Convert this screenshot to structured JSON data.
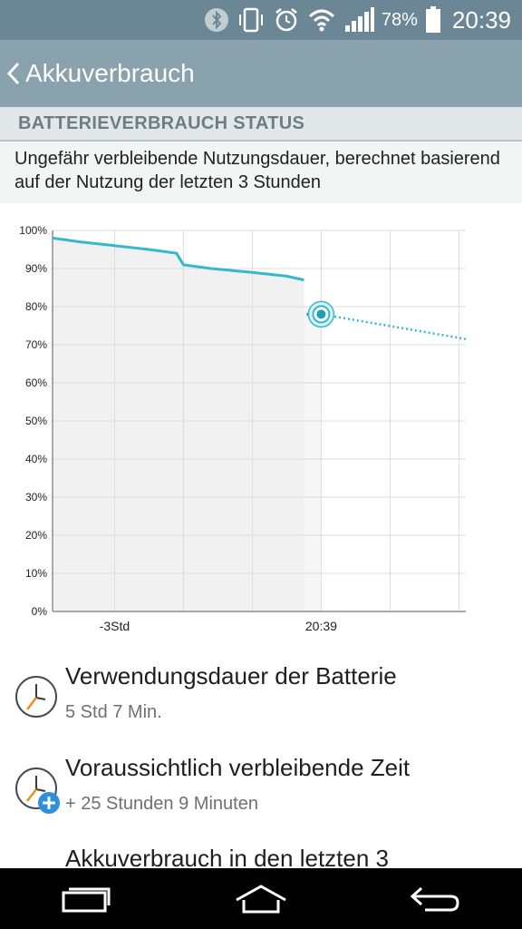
{
  "status_bar": {
    "battery_percent": "78%",
    "time": "20:39",
    "icons": [
      "bluetooth-icon",
      "vibrate-icon",
      "alarm-icon",
      "wifi-icon",
      "signal-icon",
      "battery-icon"
    ]
  },
  "action_bar": {
    "title": "Akkuverbrauch",
    "back_icon": "chevron-left-icon"
  },
  "section_header": "BATTERIEVERBRAUCH STATUS",
  "description": "Ungefähr verbleibende Nutzungsdauer, berechnet basierend auf der Nutzung der letzten 3 Stunden",
  "chart_data": {
    "type": "line",
    "y_tick_labels": [
      "100%",
      "90%",
      "80%",
      "70%",
      "60%",
      "50%",
      "40%",
      "30%",
      "20%",
      "10%",
      "0%"
    ],
    "x_tick_labels": [
      "-3Std",
      "20:39"
    ],
    "ylim": [
      0,
      100
    ],
    "x_unit": "hours relative to now",
    "xlim": [
      -3.9,
      2.1
    ],
    "grid": true,
    "series": [
      {
        "style": "solid",
        "x": [
          -3.9,
          -3.5,
          -3.0,
          -2.5,
          -2.1,
          -2.0,
          -1.6,
          -1.0,
          -0.5,
          -0.25
        ],
        "y": [
          98,
          97,
          96,
          95,
          94,
          91,
          90,
          89,
          88,
          87
        ]
      },
      {
        "style": "dotted",
        "x": [
          0,
          2.1
        ],
        "y": [
          78,
          71.5
        ]
      }
    ],
    "current_marker": {
      "x": 0,
      "y": 78
    },
    "colors": {
      "line": "#35b8cc",
      "fill": "#f1f1f1",
      "grid": "#dcdcdc",
      "axis": "#a8a8a8"
    }
  },
  "items": [
    {
      "title": "Verwendungsdauer der Batterie",
      "subtitle": "5 Std 7 Min.",
      "icon": "clock-icon"
    },
    {
      "title": "Voraussichtlich verbleibende Zeit",
      "subtitle": "+ 25 Stunden 9 Minuten",
      "icon": "clock-plus-icon"
    },
    {
      "title": "Akkuverbrauch in den letzten 3"
    }
  ],
  "nav_bar": {
    "buttons": [
      "recent-apps-icon",
      "home-icon",
      "back-icon"
    ]
  }
}
